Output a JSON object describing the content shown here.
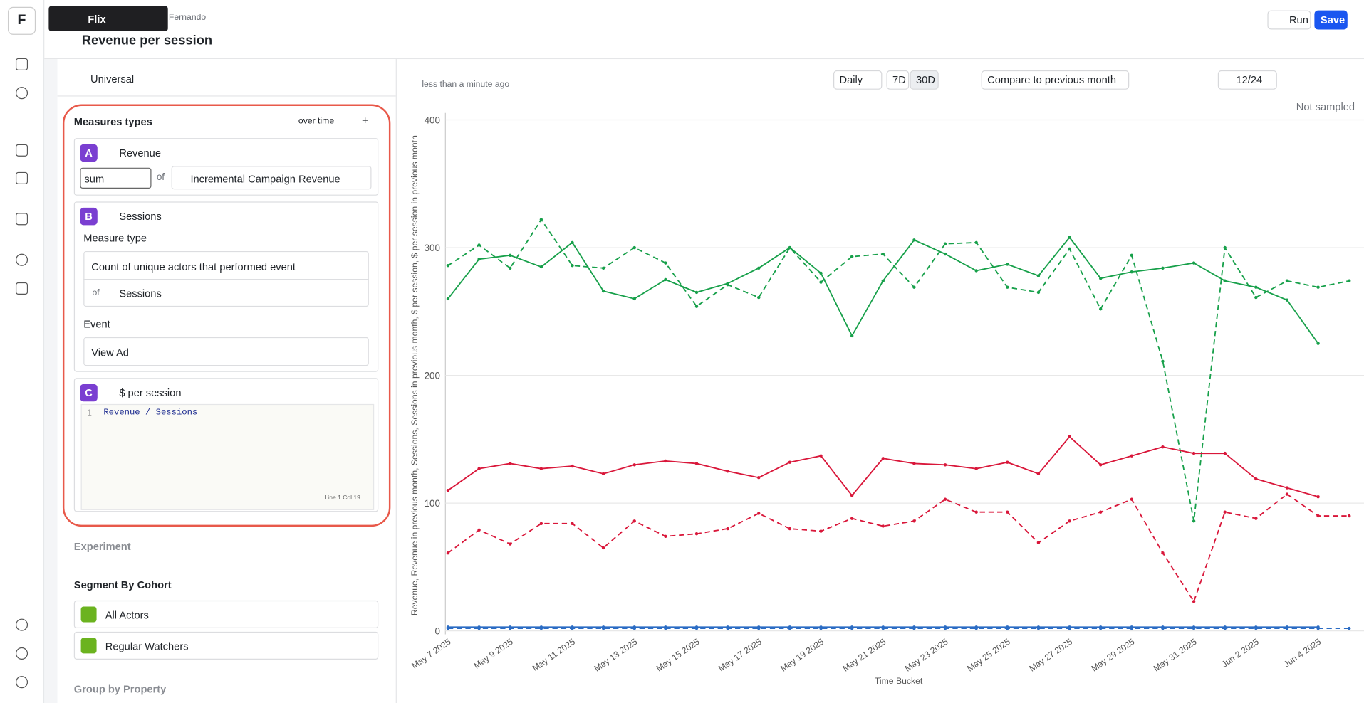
{
  "header": {
    "app": "Flix",
    "breadcrumb": "Fernando",
    "title": "Revenue per session",
    "run": "Run",
    "save": "Save"
  },
  "panel": {
    "scope": "Universal",
    "measures": {
      "title": "Measures types",
      "mode": "over time",
      "a": {
        "letter": "A",
        "name": "Revenue",
        "aggregation": "sum",
        "of": "of",
        "property": "Incremental Campaign Revenue"
      },
      "b": {
        "letter": "B",
        "name": "Sessions",
        "measure_type_label": "Measure type",
        "measure_type": "Count of unique actors that performed event",
        "of": "of",
        "source": "Sessions",
        "event_label": "Event",
        "event": "View Ad"
      },
      "c": {
        "letter": "C",
        "name": "$ per session",
        "line_number": "1",
        "formula": "Revenue / Sessions",
        "cursor": "Line 1 Col 19"
      }
    },
    "experiment": "Experiment",
    "segment": {
      "title": "Segment By Cohort",
      "cohorts": [
        "All Actors",
        "Regular Watchers"
      ]
    },
    "group": "Group by Property"
  },
  "toolbar": {
    "updated": "less than a minute ago",
    "granularity": "Daily",
    "range_7": "7D",
    "range_30": "30D",
    "compare": "Compare to previous month",
    "visible": "12/24",
    "sampling": "Not sampled"
  },
  "chart_data": {
    "type": "line",
    "y_label": "Revenue, Revenue in previous month, Sessions, Sessions in previous month, $ per session, $ per session in previous month",
    "x_label": "Time Bucket",
    "categories": [
      "May 7 2025",
      null,
      "May 9 2025",
      null,
      "May 11 2025",
      null,
      "May 13 2025",
      null,
      "May 15 2025",
      null,
      "May 17 2025",
      null,
      "May 19 2025",
      null,
      "May 21 2025",
      null,
      "May 23 2025",
      null,
      "May 25 2025",
      null,
      "May 27 2025",
      null,
      "May 29 2025",
      null,
      "May 31 2025",
      null,
      "Jun 2 2025",
      null,
      "Jun 4 2025",
      null
    ],
    "ylim": [
      0,
      400
    ],
    "yticks": [
      0,
      100,
      200,
      300,
      400
    ],
    "grid": true,
    "series": [
      {
        "color": "#17a04a",
        "dashed": false,
        "values": [
          260,
          291,
          294,
          285,
          304,
          266,
          260,
          275,
          265,
          272,
          284,
          300,
          280,
          231,
          274,
          306,
          295,
          282,
          287,
          278,
          308,
          276,
          281,
          284,
          288,
          274,
          269,
          259,
          225,
          null
        ]
      },
      {
        "color": "#17a04a",
        "dashed": true,
        "values": [
          286,
          302,
          284,
          322,
          286,
          284,
          300,
          288,
          254,
          271,
          261,
          300,
          273,
          293,
          295,
          269,
          303,
          304,
          269,
          265,
          299,
          252,
          294,
          211,
          86,
          300,
          261,
          274,
          269,
          274
        ]
      },
      {
        "color": "#d9173a",
        "dashed": false,
        "values": [
          110,
          127,
          131,
          127,
          129,
          123,
          130,
          133,
          131,
          125,
          120,
          132,
          137,
          106,
          135,
          131,
          130,
          127,
          132,
          123,
          152,
          130,
          137,
          144,
          139,
          139,
          119,
          112,
          105,
          null
        ]
      },
      {
        "color": "#d9173a",
        "dashed": true,
        "values": [
          61,
          79,
          68,
          84,
          84,
          65,
          86,
          74,
          76,
          80,
          92,
          80,
          78,
          88,
          82,
          86,
          103,
          93,
          93,
          69,
          86,
          93,
          103,
          61,
          23,
          93,
          88,
          107,
          90,
          90
        ]
      },
      {
        "color": "#2b6cc4",
        "dashed": false,
        "values": [
          3,
          3,
          3,
          3,
          3,
          3,
          3,
          3,
          3,
          3,
          3,
          3,
          3,
          3,
          3,
          3,
          3,
          3,
          3,
          3,
          3,
          3,
          3,
          3,
          3,
          3,
          3,
          3,
          3,
          null
        ]
      },
      {
        "color": "#2b6cc4",
        "dashed": true,
        "values": [
          2,
          2,
          2,
          2,
          2,
          2,
          2,
          2,
          2,
          2,
          2,
          2,
          2,
          2,
          2,
          2,
          2,
          2,
          2,
          2,
          2,
          2,
          2,
          2,
          2,
          2,
          2,
          2,
          2,
          2
        ]
      }
    ]
  }
}
